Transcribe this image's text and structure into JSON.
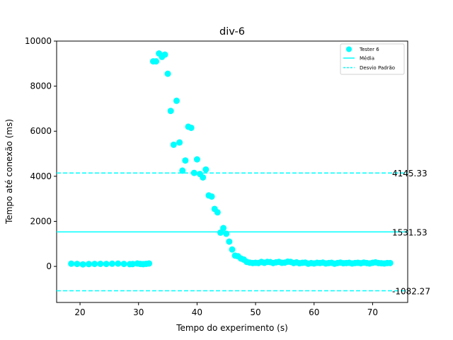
{
  "chart_data": {
    "type": "scatter",
    "title": "div-6",
    "xlabel": "Tempo do experimento (s)",
    "ylabel": "Tempo até conexão (ms)",
    "xlim": [
      16,
      76
    ],
    "ylim": [
      -1600,
      10000
    ],
    "xticks": [
      20,
      30,
      40,
      50,
      60,
      70
    ],
    "yticks": [
      0,
      2000,
      4000,
      6000,
      8000,
      10000
    ],
    "grid": false,
    "legend_position": "top-right",
    "legend": [
      "Tester 6",
      "Média",
      "Desvio Padrão"
    ],
    "color": "#00ffff",
    "series": [
      {
        "name": "Tester 6",
        "points": [
          [
            18.5,
            120
          ],
          [
            19.5,
            110
          ],
          [
            20.5,
            90
          ],
          [
            21.5,
            105
          ],
          [
            22.5,
            110
          ],
          [
            23.5,
            115
          ],
          [
            24.5,
            110
          ],
          [
            25.5,
            120
          ],
          [
            26.5,
            125
          ],
          [
            27.5,
            110
          ],
          [
            28.5,
            100
          ],
          [
            29.0,
            105
          ],
          [
            29.8,
            130
          ],
          [
            30.3,
            110
          ],
          [
            30.8,
            100
          ],
          [
            31.3,
            115
          ],
          [
            31.8,
            130
          ],
          [
            32.5,
            9100
          ],
          [
            33.0,
            9100
          ],
          [
            33.5,
            9450
          ],
          [
            34.0,
            9300
          ],
          [
            34.5,
            9400
          ],
          [
            35.0,
            8550
          ],
          [
            35.5,
            6900
          ],
          [
            36.0,
            5400
          ],
          [
            36.5,
            7350
          ],
          [
            37.0,
            5500
          ],
          [
            37.5,
            4250
          ],
          [
            38.0,
            4700
          ],
          [
            38.5,
            6200
          ],
          [
            39.0,
            6150
          ],
          [
            39.5,
            4150
          ],
          [
            40.0,
            4750
          ],
          [
            40.5,
            4100
          ],
          [
            41.0,
            3950
          ],
          [
            41.5,
            4300
          ],
          [
            42.0,
            3150
          ],
          [
            42.5,
            3100
          ],
          [
            43.0,
            2550
          ],
          [
            43.5,
            2400
          ],
          [
            44.0,
            1500
          ],
          [
            44.5,
            1700
          ],
          [
            45.0,
            1450
          ],
          [
            45.5,
            1100
          ],
          [
            46.0,
            750
          ],
          [
            46.5,
            480
          ],
          [
            47.0,
            450
          ],
          [
            47.5,
            350
          ],
          [
            48.0,
            300
          ],
          [
            48.5,
            200
          ],
          [
            49.0,
            170
          ],
          [
            49.5,
            150
          ],
          [
            50.0,
            160
          ],
          [
            50.5,
            150
          ],
          [
            51.0,
            200
          ],
          [
            51.5,
            160
          ],
          [
            52.0,
            200
          ],
          [
            52.5,
            190
          ],
          [
            53.0,
            150
          ],
          [
            53.5,
            180
          ],
          [
            54.0,
            200
          ],
          [
            54.5,
            160
          ],
          [
            55.0,
            170
          ],
          [
            55.5,
            210
          ],
          [
            56.0,
            200
          ],
          [
            56.5,
            150
          ],
          [
            57.0,
            180
          ],
          [
            57.5,
            140
          ],
          [
            58.0,
            160
          ],
          [
            58.5,
            170
          ],
          [
            59.0,
            120
          ],
          [
            59.5,
            150
          ],
          [
            60.0,
            130
          ],
          [
            60.5,
            160
          ],
          [
            61.0,
            150
          ],
          [
            61.5,
            170
          ],
          [
            62.0,
            130
          ],
          [
            62.5,
            150
          ],
          [
            63.0,
            160
          ],
          [
            63.5,
            120
          ],
          [
            64.0,
            150
          ],
          [
            64.5,
            170
          ],
          [
            65.0,
            140
          ],
          [
            65.5,
            150
          ],
          [
            66.0,
            160
          ],
          [
            66.5,
            130
          ],
          [
            67.0,
            150
          ],
          [
            67.5,
            160
          ],
          [
            68.0,
            140
          ],
          [
            68.5,
            170
          ],
          [
            69.0,
            150
          ],
          [
            69.5,
            130
          ],
          [
            70.0,
            160
          ],
          [
            70.5,
            180
          ],
          [
            71.0,
            150
          ],
          [
            71.5,
            140
          ],
          [
            72.0,
            130
          ],
          [
            72.5,
            150
          ],
          [
            73.0,
            150
          ]
        ]
      }
    ],
    "reference_lines": [
      {
        "name": "Média",
        "value": 1531.53,
        "label": "1531.53",
        "style": "solid"
      },
      {
        "name": "Desvio Padrão",
        "value": 4145.33,
        "label": "4145.33",
        "style": "dashed"
      },
      {
        "name": "Desvio Padrão",
        "value": -1082.27,
        "label": "-1082.27",
        "style": "dashed"
      }
    ]
  }
}
